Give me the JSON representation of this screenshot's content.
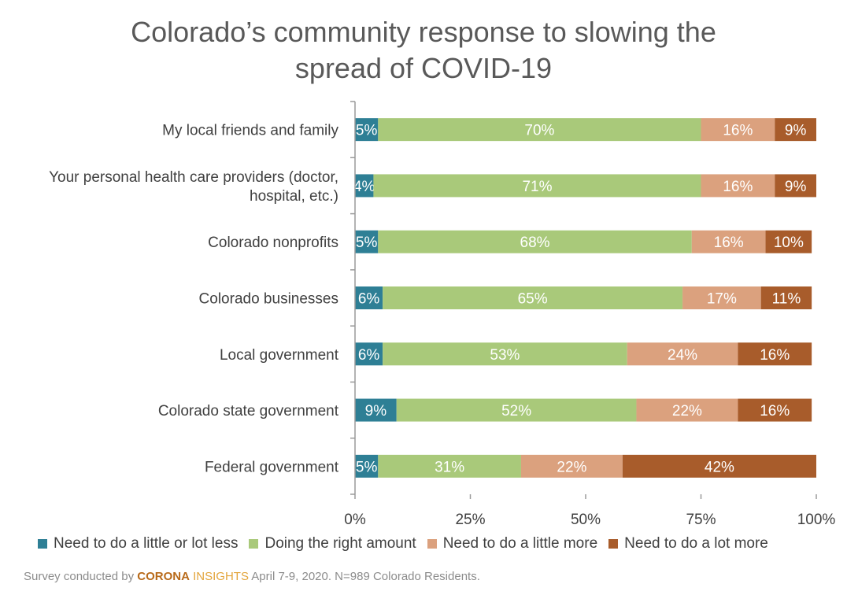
{
  "title_line1": "Colorado’s community response to slowing the",
  "title_line2": "spread of COVID-19",
  "chart_data": {
    "type": "bar",
    "orientation": "horizontal",
    "stacked": true,
    "title": "Colorado’s community response to slowing the spread of COVID-19",
    "xlim": [
      0,
      100
    ],
    "x_ticks": [
      "0%",
      "25%",
      "50%",
      "75%",
      "100%"
    ],
    "categories": [
      [
        "My local friends and family"
      ],
      [
        "Your personal health care providers (doctor,",
        "hospital, etc.)"
      ],
      [
        "Colorado nonprofits"
      ],
      [
        "Colorado businesses"
      ],
      [
        "Local government"
      ],
      [
        "Colorado state government"
      ],
      [
        "Federal government"
      ]
    ],
    "series": [
      {
        "name": "Need to do a little or lot less",
        "color": "#2e7f95",
        "values": [
          5,
          4,
          5,
          6,
          6,
          9,
          5
        ]
      },
      {
        "name": "Doing the right amount",
        "color": "#a9c97a",
        "values": [
          70,
          71,
          68,
          65,
          53,
          52,
          31
        ]
      },
      {
        "name": "Need to do a little more",
        "color": "#dba17e",
        "values": [
          16,
          16,
          16,
          17,
          24,
          22,
          22
        ]
      },
      {
        "name": "Need to do a lot more",
        "color": "#a85c2b",
        "values": [
          9,
          9,
          10,
          11,
          16,
          16,
          42
        ]
      }
    ],
    "grid": false,
    "legend_position": "bottom"
  },
  "footnote": {
    "prefix": "Survey conducted by ",
    "brand_part1": "CORONA",
    "brand_part2": " INSIGHTS",
    "suffix": " April 7-9, 2020. N=989 Colorado Residents."
  }
}
